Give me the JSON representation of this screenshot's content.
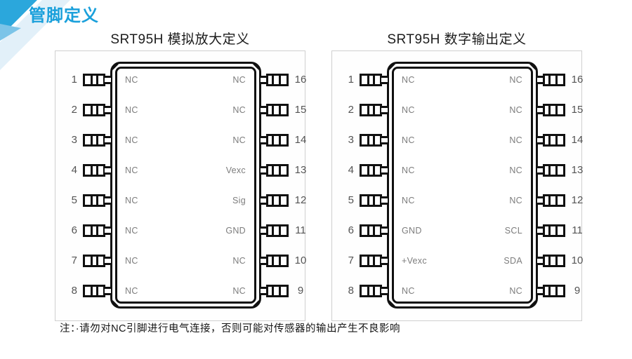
{
  "header": {
    "title": "管脚定义"
  },
  "diagrams": [
    {
      "title": "SRT95H 模拟放大定义",
      "left_pins": [
        {
          "num": "1",
          "label": "NC"
        },
        {
          "num": "2",
          "label": "NC"
        },
        {
          "num": "3",
          "label": "NC"
        },
        {
          "num": "4",
          "label": "NC"
        },
        {
          "num": "5",
          "label": "NC"
        },
        {
          "num": "6",
          "label": "NC"
        },
        {
          "num": "7",
          "label": "NC"
        },
        {
          "num": "8",
          "label": "NC"
        }
      ],
      "right_pins": [
        {
          "num": "16",
          "label": "NC"
        },
        {
          "num": "15",
          "label": "NC"
        },
        {
          "num": "14",
          "label": "NC"
        },
        {
          "num": "13",
          "label": "Vexc"
        },
        {
          "num": "12",
          "label": "Sig"
        },
        {
          "num": "11",
          "label": "GND"
        },
        {
          "num": "10",
          "label": "NC"
        },
        {
          "num": "9",
          "label": "NC"
        }
      ]
    },
    {
      "title": "SRT95H 数字输出定义",
      "left_pins": [
        {
          "num": "1",
          "label": "NC"
        },
        {
          "num": "2",
          "label": "NC"
        },
        {
          "num": "3",
          "label": "NC"
        },
        {
          "num": "4",
          "label": "NC"
        },
        {
          "num": "5",
          "label": "NC"
        },
        {
          "num": "6",
          "label": "GND"
        },
        {
          "num": "7",
          "label": "+Vexc"
        },
        {
          "num": "8",
          "label": "NC"
        }
      ],
      "right_pins": [
        {
          "num": "16",
          "label": "NC"
        },
        {
          "num": "15",
          "label": "NC"
        },
        {
          "num": "14",
          "label": "NC"
        },
        {
          "num": "13",
          "label": "NC"
        },
        {
          "num": "12",
          "label": "NC"
        },
        {
          "num": "11",
          "label": "SCL"
        },
        {
          "num": "10",
          "label": "SDA"
        },
        {
          "num": "9",
          "label": "NC"
        }
      ]
    }
  ],
  "note": "注：·请勿对NC引脚进行电气连接，否则可能对传感器的输出产生不良影响",
  "colors": {
    "accent_blue": "#2BA7DC",
    "accent_blue_light": "#7CC4E8",
    "accent_blue_pale": "#E2F0F9",
    "title_blue": "#1AA0DB",
    "outline_black": "#101010",
    "label_gray": "#7D7D7D",
    "box_border_gray": "#CFCFCF"
  }
}
